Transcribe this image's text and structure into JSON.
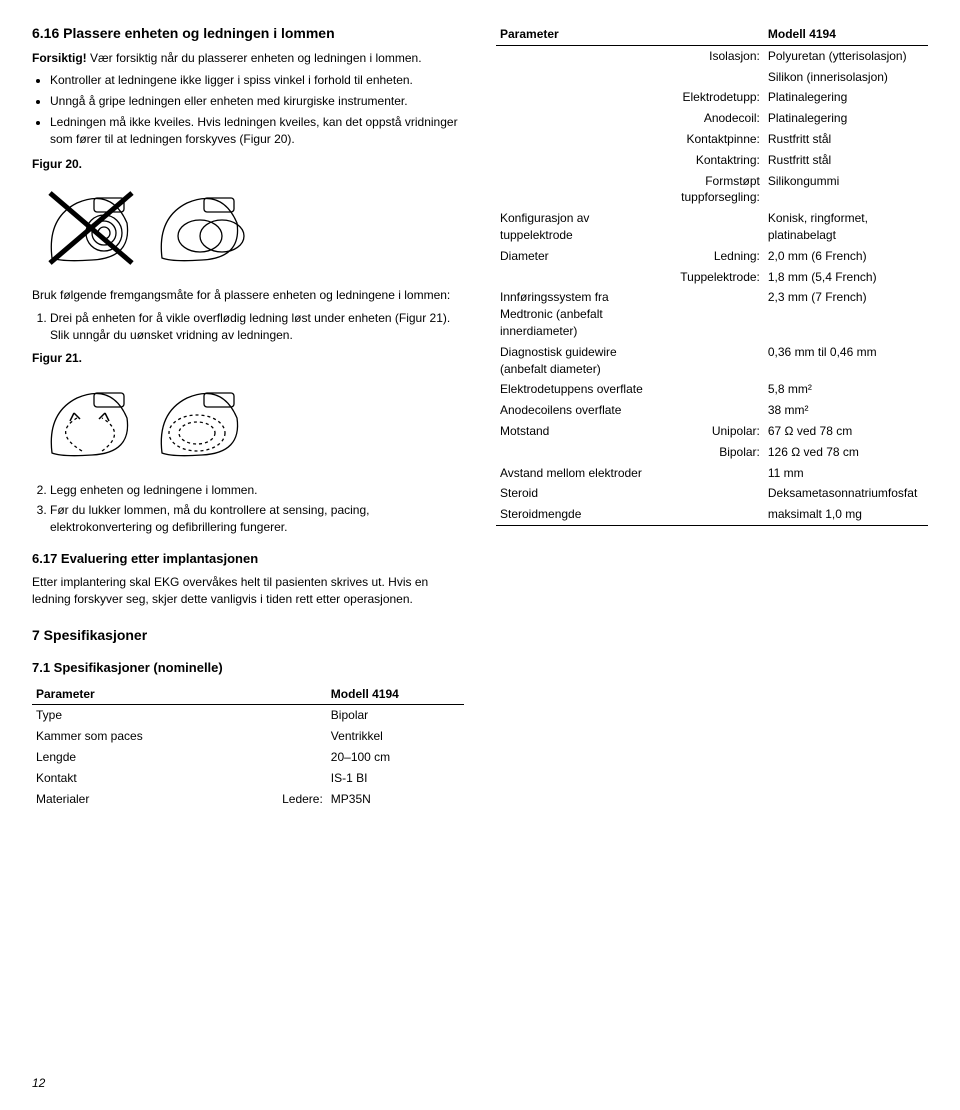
{
  "left": {
    "h616": "6.16  Plassere enheten og ledningen i lommen",
    "caution_label": "Forsiktig!",
    "caution_text": " Vær forsiktig når du plasserer enheten og ledningen i lommen.",
    "bullet1": "Kontroller at ledningene ikke ligger i spiss vinkel i forhold til enheten.",
    "bullet2": "Unngå å gripe ledningen eller enheten med kirurgiske instrumenter.",
    "bullet3": "Ledningen må ikke kveiles. Hvis ledningen kveiles, kan det oppstå vridninger som fører til at ledningen forskyves (Figur 20).",
    "fig20": "Figur 20.",
    "method_intro": "Bruk følgende fremgangsmåte for å plassere enheten og ledningene i lommen:",
    "step1": "Drei på enheten for å vikle overflødig ledning løst under enheten (Figur 21). Slik unngår du uønsket vridning av ledningen.",
    "fig21": "Figur 21.",
    "step2": "Legg enheten og ledningene i lommen.",
    "step3": "Før du lukker lommen, må du kontrollere at sensing, pacing, elektrokonvertering og defibrillering fungerer.",
    "h617": "6.17  Evaluering etter implantasjonen",
    "eval_text": "Etter implantering skal EKG overvåkes helt til pasienten skrives ut. Hvis en ledning forskyver seg, skjer dette vanligvis i tiden rett etter operasjonen.",
    "h7": "7  Spesifikasjoner",
    "h71": "7.1  Spesifikasjoner (nominelle)"
  },
  "spec_small": {
    "header_param": "Parameter",
    "header_model": "Modell 4194",
    "rows": [
      {
        "p": "Type",
        "s": "",
        "v": "Bipolar"
      },
      {
        "p": "Kammer som paces",
        "s": "",
        "v": "Ventrikkel"
      },
      {
        "p": "Lengde",
        "s": "",
        "v": "20–100 cm"
      },
      {
        "p": "Kontakt",
        "s": "",
        "v": "IS-1 BI"
      },
      {
        "p": "Materialer",
        "s": "Ledere:",
        "v": "MP35N"
      }
    ]
  },
  "spec_right": {
    "header_param": "Parameter",
    "header_model": "Modell 4194",
    "rows": [
      {
        "p": "",
        "s": "Isolasjon:",
        "v": "Polyuretan (ytterisolasjon)"
      },
      {
        "p": "",
        "s": "",
        "v": "Silikon (innerisolasjon)"
      },
      {
        "p": "",
        "s": "Elektrodetupp:",
        "v": "Platinalegering"
      },
      {
        "p": "",
        "s": "Anodecoil:",
        "v": "Platinalegering"
      },
      {
        "p": "",
        "s": "Kontaktpinne:",
        "v": "Rustfritt stål"
      },
      {
        "p": "",
        "s": "Kontaktring:",
        "v": "Rustfritt stål"
      },
      {
        "p": "",
        "s": "Formstøpt tuppforsegling:",
        "v": "Silikongummi"
      },
      {
        "p": "Konfigurasjon av tuppelektrode",
        "s": "",
        "v": "Konisk, ringformet, platinabelagt"
      },
      {
        "p": "Diameter",
        "s": "Ledning:",
        "v": "2,0 mm (6 French)"
      },
      {
        "p": "",
        "s": "Tuppelektrode:",
        "v": "1,8 mm (5,4 French)"
      },
      {
        "p": "Innføringssystem fra Medtronic (anbefalt innerdiameter)",
        "s": "",
        "v": "2,3 mm (7 French)"
      },
      {
        "p": "Diagnostisk guidewire (anbefalt diameter)",
        "s": "",
        "v": "0,36 mm til 0,46 mm"
      },
      {
        "p": "Elektrodetuppens overflate",
        "s": "",
        "v": "5,8 mm²"
      },
      {
        "p": "Anodecoilens overflate",
        "s": "",
        "v": "38 mm²"
      },
      {
        "p": "Motstand",
        "s": "Unipolar:",
        "v": "67 Ω ved 78 cm"
      },
      {
        "p": "",
        "s": "Bipolar:",
        "v": "126 Ω ved 78 cm"
      },
      {
        "p": "Avstand mellom elektroder",
        "s": "",
        "v": "11 mm"
      },
      {
        "p": "Steroid",
        "s": "",
        "v": "Deksametasonnatriumfosfat"
      },
      {
        "p": "Steroidmengde",
        "s": "",
        "v": "maksimalt 1,0 mg"
      }
    ]
  },
  "page_number": "12"
}
